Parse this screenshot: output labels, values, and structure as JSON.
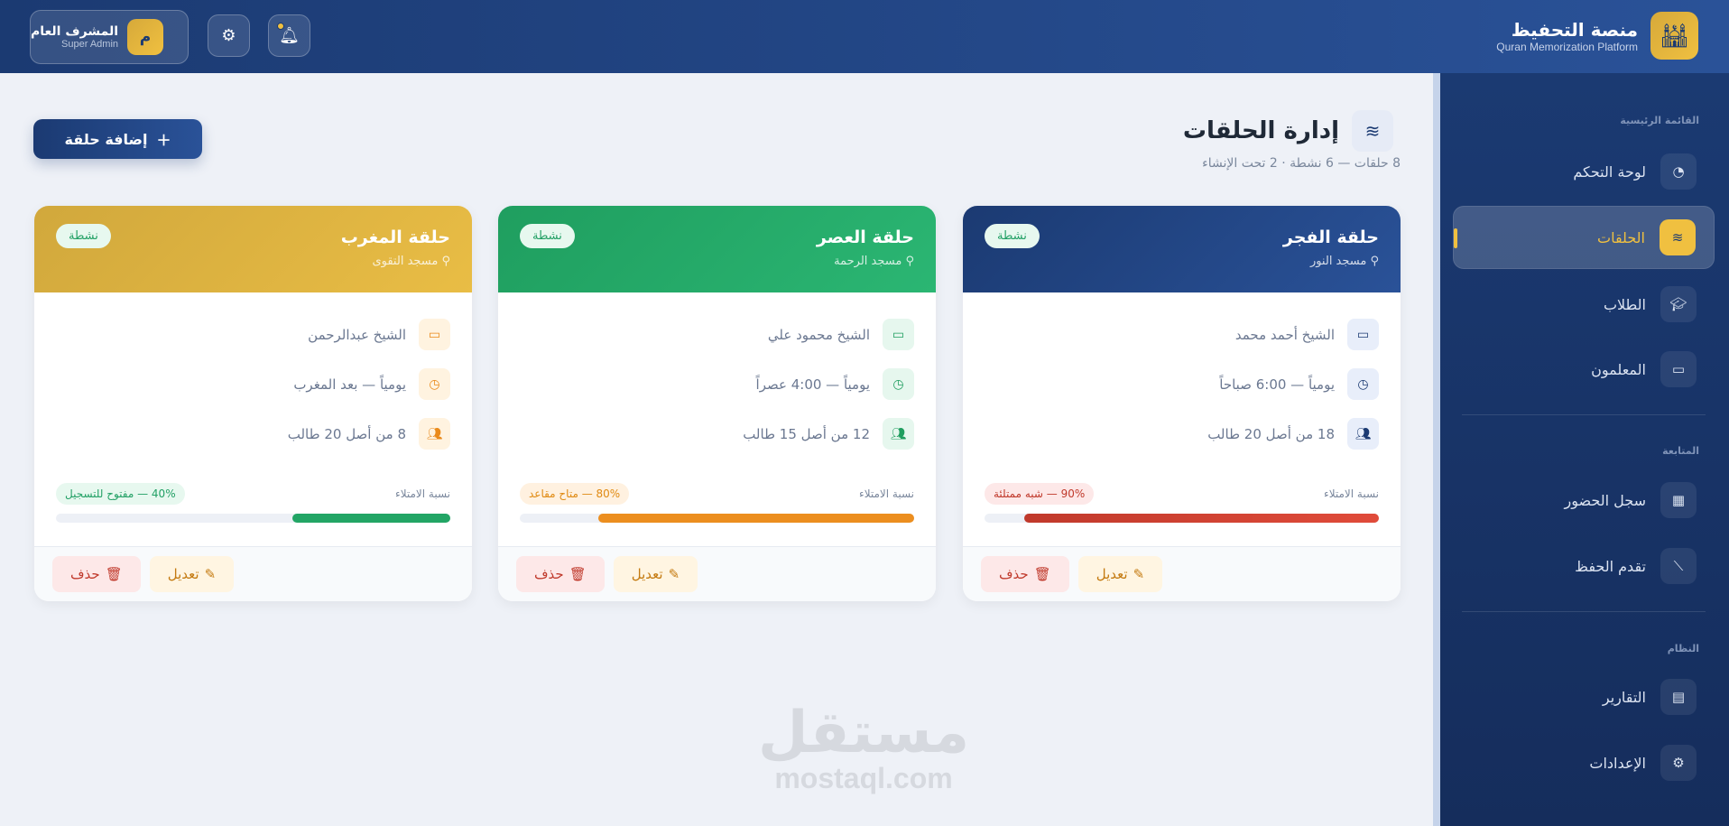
{
  "header": {
    "user": {
      "name": "المشرف العام",
      "role": "Super Admin",
      "avatar_letter": "م"
    },
    "brand": {
      "title": "منصة التحفيظ",
      "subtitle": "Quran Memorization Platform"
    }
  },
  "sidebar": {
    "sections": [
      {
        "label": "القائمة الرئيسية",
        "items": [
          {
            "label": "لوحة التحكم",
            "icon": "chart-pie-icon"
          },
          {
            "label": "الحلقات",
            "icon": "layers-icon",
            "active": true
          },
          {
            "label": "الطلاب",
            "icon": "graduate-icon"
          },
          {
            "label": "المعلمون",
            "icon": "teacher-icon"
          }
        ]
      },
      {
        "label": "المتابعة",
        "items": [
          {
            "label": "سجل الحضور",
            "icon": "calendar-check-icon"
          },
          {
            "label": "تقدم الحفظ",
            "icon": "chart-line-icon"
          }
        ]
      },
      {
        "label": "النظام",
        "items": [
          {
            "label": "التقارير",
            "icon": "file-icon"
          },
          {
            "label": "الإعدادات",
            "icon": "gear-icon"
          }
        ]
      }
    ]
  },
  "main": {
    "title": "إدارة الحلقات",
    "subtitle": "8 حلقات — 6 نشطة · 2 تحت الإنشاء",
    "add_button": "إضافة حلقة",
    "fill_label": "نسبة الامتلاء",
    "edit_label": "تعديل",
    "delete_label": "حذف",
    "cards": [
      {
        "name": "حلقة الفجر",
        "mosque": "مسجد النور",
        "status": "نشطة",
        "teacher": "الشيخ أحمد محمد",
        "schedule": "يومياً — 6:00 صباحاً",
        "students": "18 من أصل 20 طالب",
        "fill_percent": 90,
        "fill_text": "90% — شبه ممتلئة",
        "color": "#1f4283"
      },
      {
        "name": "حلقة العصر",
        "mosque": "مسجد الرحمة",
        "status": "نشطة",
        "teacher": "الشيخ محمود علي",
        "schedule": "يومياً — 4:00 عصراً",
        "students": "12 من أصل 15 طالب",
        "fill_percent": 80,
        "fill_text": "80% — متاح مقاعد",
        "color": "#22a565"
      },
      {
        "name": "حلقة المغرب",
        "mosque": "مسجد التقوى",
        "status": "نشطة",
        "teacher": "الشيخ عبدالرحمن",
        "schedule": "يومياً — بعد المغرب",
        "students": "8 من أصل 20 طالب",
        "fill_percent": 40,
        "fill_text": "40% — مفتوح للتسجيل",
        "color": "#d9b040"
      }
    ]
  },
  "watermark": {
    "arabic": "مستقل",
    "latin": "mostaql.com"
  }
}
